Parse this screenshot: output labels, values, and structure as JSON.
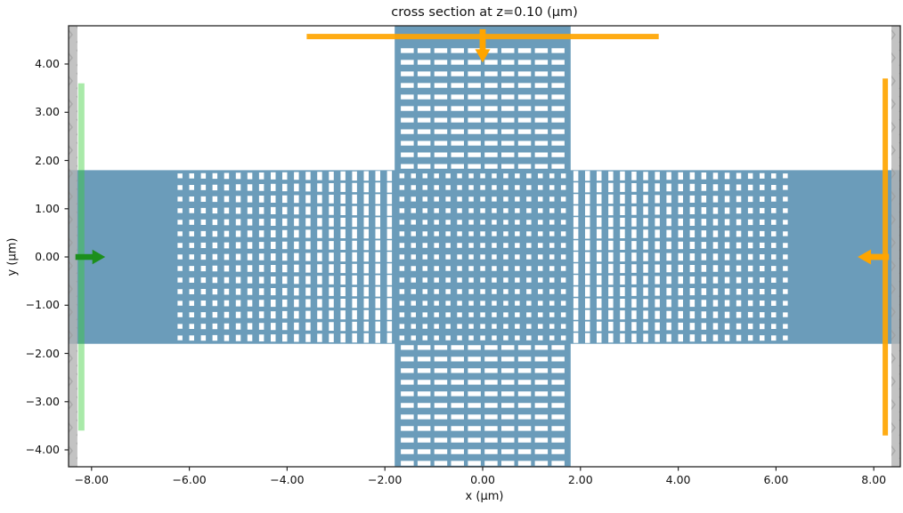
{
  "figure": {
    "title": "cross section at z=0.10 (μm)",
    "xlabel": "x (μm)",
    "ylabel": "y (μm)"
  },
  "chart_data": {
    "type": "area",
    "title": "cross section at z=0.10 (μm)",
    "xlabel": "x (μm)",
    "ylabel": "y (μm)",
    "xlim": [
      -8.47,
      8.54
    ],
    "ylim": [
      -4.35,
      4.79
    ],
    "grid": false,
    "legend": false,
    "xticks": [
      {
        "v": -8,
        "label": "−8.00"
      },
      {
        "v": -6,
        "label": "−6.00"
      },
      {
        "v": -4,
        "label": "−4.00"
      },
      {
        "v": -2,
        "label": "−2.00"
      },
      {
        "v": 0,
        "label": "0.00"
      },
      {
        "v": 2,
        "label": "2.00"
      },
      {
        "v": 4,
        "label": "4.00"
      },
      {
        "v": 6,
        "label": "6.00"
      },
      {
        "v": 8,
        "label": "8.00"
      }
    ],
    "yticks": [
      {
        "v": 4,
        "label": "4.00"
      },
      {
        "v": 3,
        "label": "3.00"
      },
      {
        "v": 2,
        "label": "2.00"
      },
      {
        "v": 1,
        "label": "1.00"
      },
      {
        "v": 0,
        "label": "0.00"
      },
      {
        "v": -1,
        "label": "−1.00"
      },
      {
        "v": -2,
        "label": "−2.00"
      },
      {
        "v": -3,
        "label": "−3.00"
      },
      {
        "v": -4,
        "label": "−4.00"
      }
    ],
    "structures": {
      "slab_horizontal": {
        "x": [
          -8.47,
          8.54
        ],
        "y": [
          -1.8,
          1.8
        ]
      },
      "slab_vertical": {
        "x": [
          -1.8,
          1.8
        ],
        "y": [
          -4.35,
          4.79
        ]
      },
      "pml": [
        {
          "side": "left",
          "x": [
            -8.47,
            -8.29
          ]
        },
        {
          "side": "right",
          "x": [
            8.36,
            8.54
          ]
        }
      ]
    },
    "pattern": {
      "band_taper": {
        "x_outer": 6.19,
        "cols": 19,
        "col_pitch": 0.238,
        "rows": 15,
        "row_pitch": 0.24,
        "dash_w": 0.1,
        "dash_h_min": 0.1,
        "dash_h_max": 0.21,
        "sides": [
          "left",
          "right"
        ]
      },
      "center_grid": {
        "cols": 15,
        "rows": 15,
        "col_pitch": 0.236,
        "row_pitch": 0.24,
        "sq_w": 0.1,
        "sq_h": 0.1
      },
      "arm_rows": {
        "rows": 11,
        "y_outer": 4.277,
        "row_pitch": 0.24,
        "dashes": 10,
        "dash_pitch": 0.3425,
        "dash_w": 0.264,
        "dash_h": 0.097,
        "sides": [
          "top",
          "bottom"
        ]
      }
    },
    "overlays": {
      "source_plane": {
        "x": -8.21,
        "y": [
          -3.6,
          3.6
        ]
      },
      "source_arrow": {
        "y": 0,
        "x_tail": -8.33,
        "x_tip": -7.72,
        "dir": "right"
      },
      "monitor_top": {
        "y": 4.57,
        "x": [
          -3.6,
          3.6
        ]
      },
      "monitor_top_arrow": {
        "x": 0,
        "y_tail": 4.72,
        "y_tip": 4.03,
        "dir": "down"
      },
      "monitor_right": {
        "x": 8.235,
        "y": [
          -3.7,
          3.7
        ]
      },
      "monitor_right_arrow": {
        "y": 0,
        "x_tail": 8.31,
        "x_tip": 7.67,
        "dir": "left"
      }
    },
    "colors": {
      "structure": "#6b9cba",
      "hole": "#ffffff",
      "pml": "#b4b4b4",
      "pml_hatch": "#9c9c9c",
      "monitor": "#ffa500",
      "source_plane": "rgb(50,205,50)",
      "source_arrow": "#1d8f1d",
      "spine": "#262626",
      "background": "#ffffff"
    }
  }
}
